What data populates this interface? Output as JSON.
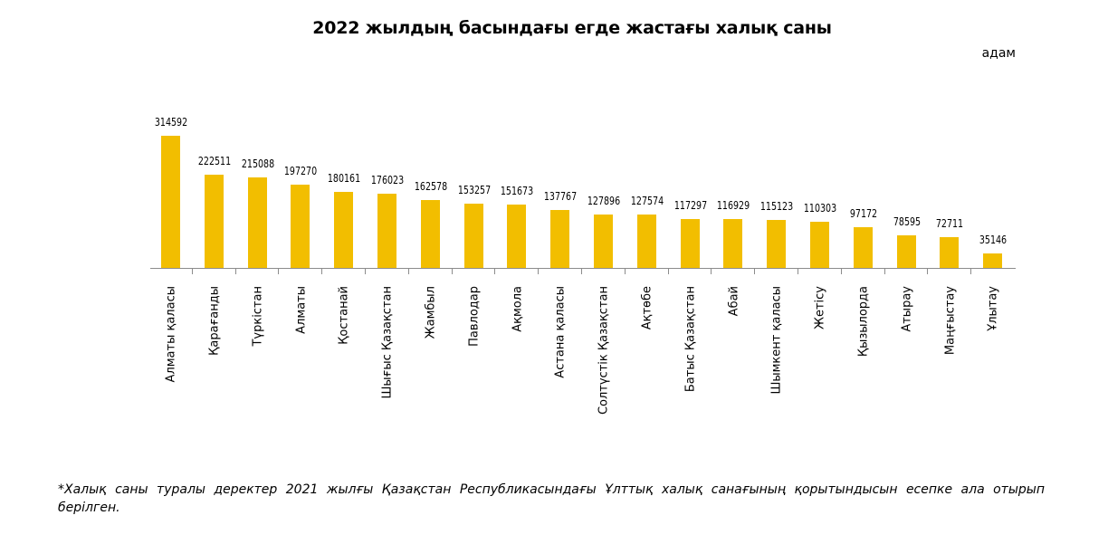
{
  "header": {
    "title": "2022 жылдың басындағы егде жастағы халық саны",
    "unit": "адам"
  },
  "footnote": "*Халық саны туралы деректер 2021 жылғы Қазақстан Республикасындағы Ұлттық халық санағының қорытындысын есепке ала отырып берілген.",
  "colors": {
    "bar": "#f2be00",
    "axis": "#8c8c8c"
  },
  "chart_data": {
    "type": "bar",
    "title": "2022 жылдың басындағы егде жастағы халық саны",
    "ylabel": "адам",
    "xlabel": "",
    "ylim": [
      0,
      320000
    ],
    "grid": false,
    "legend": null,
    "data_labels": true,
    "categories": [
      "Алматы қаласы",
      "Қарағанды",
      "Түркістан",
      "Алматы",
      "Қостанай",
      "Шығыс Қазақстан",
      "Жамбыл",
      "Павлодар",
      "Ақмола",
      "Астана қаласы",
      "Солтүстік Қазақстан",
      "Ақтөбе",
      "Батыс Қазақстан",
      "Абай",
      "Шымкент қаласы",
      "Жетісу",
      "Қызылорда",
      "Атырау",
      "Маңғыстау",
      "Ұлытау"
    ],
    "values": [
      314592,
      222511,
      215088,
      197270,
      180161,
      176023,
      162578,
      153257,
      151673,
      137767,
      127896,
      127574,
      117297,
      116929,
      115123,
      110303,
      97172,
      78595,
      72711,
      35146
    ]
  }
}
